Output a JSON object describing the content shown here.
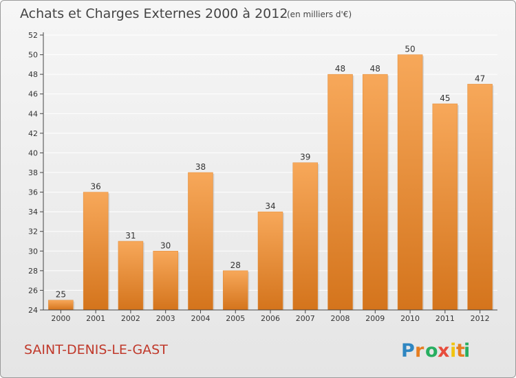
{
  "city": "SAINT-DENIS-LE-GAST",
  "logo_text": "Proxiti",
  "colors": {
    "bar_top": "#f7a85a",
    "bar_bottom": "#d4741c",
    "city": "#c0392b",
    "axis": "#444444",
    "grid": "#ffffff"
  },
  "chart_data": {
    "type": "bar",
    "title": "Achats et Charges Externes 2000 à 2012",
    "subtitle": "(en milliers d'€)",
    "categories": [
      "2000",
      "2001",
      "2002",
      "2003",
      "2004",
      "2005",
      "2006",
      "2007",
      "2008",
      "2009",
      "2010",
      "2011",
      "2012"
    ],
    "values": [
      25,
      36,
      31,
      30,
      38,
      28,
      34,
      39,
      48,
      48,
      50,
      45,
      47
    ],
    "ylim": [
      24,
      52
    ],
    "yticks": [
      24,
      26,
      28,
      30,
      32,
      34,
      36,
      38,
      40,
      42,
      44,
      46,
      48,
      50,
      52
    ],
    "grid": true,
    "legend": "none"
  }
}
